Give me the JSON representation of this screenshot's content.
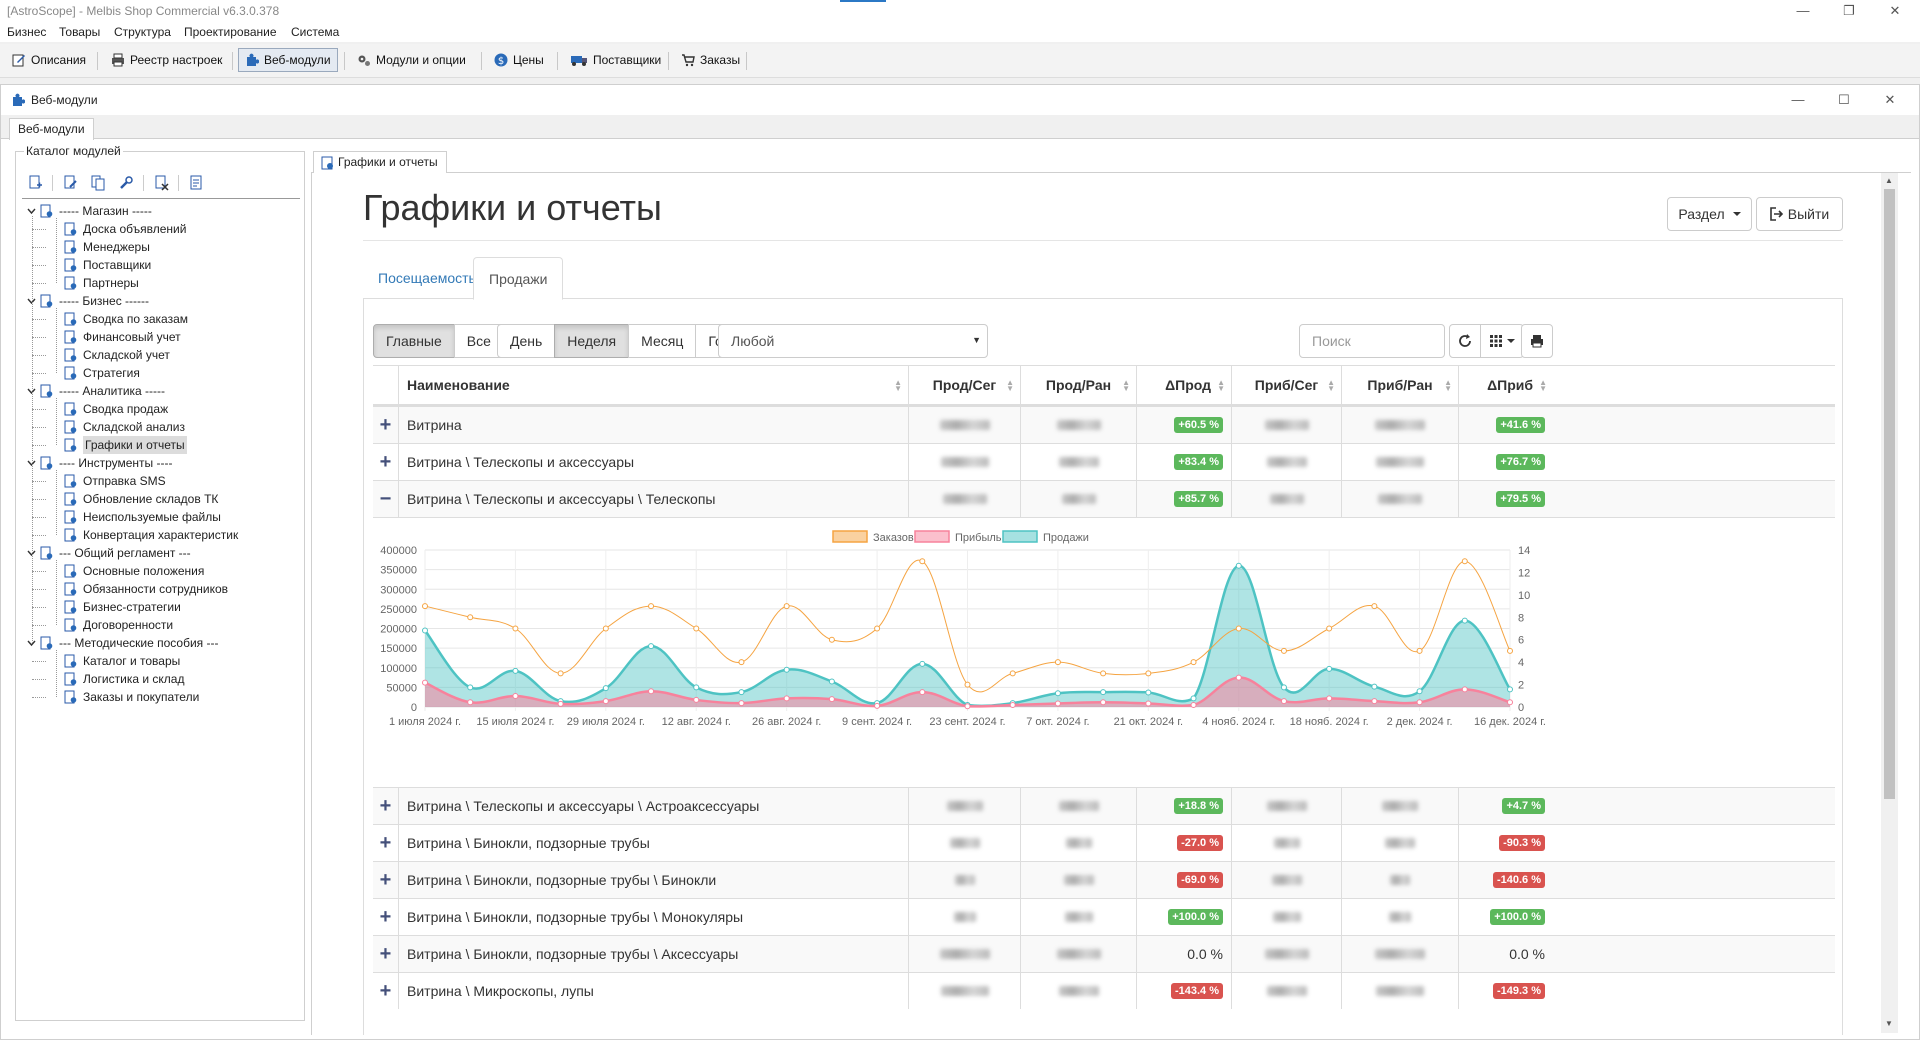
{
  "app": {
    "title": "[AstroScope] - Melbis Shop Commercial v6.3.0.378",
    "menu": [
      "Бизнес",
      "Товары",
      "Структура",
      "Проектирование",
      "Система"
    ],
    "toolbar": [
      {
        "label": "Описания",
        "icon": "pen-icon"
      },
      {
        "label": "Реестр настроек",
        "icon": "printer-icon"
      },
      {
        "label": "Веб-модули",
        "icon": "puzzle-icon"
      },
      {
        "label": "Модули и опции",
        "icon": "gears-icon"
      },
      {
        "label": "Цены",
        "icon": "dollar-icon"
      },
      {
        "label": "Поставщики",
        "icon": "truck-icon"
      },
      {
        "label": "Заказы",
        "icon": "cart-icon"
      }
    ]
  },
  "child": {
    "title": "Веб-модули",
    "tab": "Веб-модули"
  },
  "catalog": {
    "label": "Каталог модулей",
    "tree": [
      {
        "label": "----- Магазин -----",
        "level": 0
      },
      {
        "label": "Доска объявлений",
        "level": 1
      },
      {
        "label": "Менеджеры",
        "level": 1
      },
      {
        "label": "Поставщики",
        "level": 1
      },
      {
        "label": "Партнеры",
        "level": 1
      },
      {
        "label": "----- Бизнес ------",
        "level": 0
      },
      {
        "label": "Сводка по заказам",
        "level": 1
      },
      {
        "label": "Финансовый учет",
        "level": 1
      },
      {
        "label": "Складской учет",
        "level": 1
      },
      {
        "label": "Стратегия",
        "level": 1
      },
      {
        "label": "----- Аналитика -----",
        "level": 0
      },
      {
        "label": "Сводка продаж",
        "level": 1
      },
      {
        "label": "Складской анализ",
        "level": 1
      },
      {
        "label": "Графики и отчеты",
        "level": 1,
        "selected": true
      },
      {
        "label": "---- Инструменты ----",
        "level": 0
      },
      {
        "label": "Отправка SMS",
        "level": 1
      },
      {
        "label": "Обновление складов ТК",
        "level": 1
      },
      {
        "label": "Неиспользуемые файлы",
        "level": 1
      },
      {
        "label": "Конвертация характеристик",
        "level": 1
      },
      {
        "label": "--- Общий регламент ---",
        "level": 0
      },
      {
        "label": "Основные положения",
        "level": 1
      },
      {
        "label": "Обязанности сотрудников",
        "level": 1
      },
      {
        "label": "Бизнес-стратегии",
        "level": 1
      },
      {
        "label": "Договоренности",
        "level": 1
      },
      {
        "label": "--- Методические пособия ---",
        "level": 0
      },
      {
        "label": "Каталог и товары",
        "level": 1
      },
      {
        "label": "Логистика и склад",
        "level": 1
      },
      {
        "label": "Заказы и покупатели",
        "level": 1
      }
    ]
  },
  "right_tab": "Графики и отчеты",
  "page": {
    "title": "Графики и отчеты",
    "section_btn": "Раздел",
    "exit_btn": "Выйти",
    "tabs": [
      "Посещаемость",
      "Продажи"
    ],
    "active_tab": 1,
    "filter_main": [
      "Главные",
      "Все"
    ],
    "filter_period": [
      "День",
      "Неделя",
      "Месяц",
      "Год"
    ],
    "select_value": "Любой",
    "search_placeholder": "Поиск"
  },
  "grid": {
    "columns": [
      "Наименование",
      "Прод/Сег",
      "Прод/Ран",
      "ΔПрод",
      "Приб/Сег",
      "Приб/Ран",
      "ΔПриб"
    ],
    "rows_before": [
      {
        "name": "Витрина",
        "d_prod": "+60.5 %",
        "d_prod_sign": "pos",
        "d_prib": "+41.6 %",
        "d_prib_sign": "pos",
        "toggle": "+"
      },
      {
        "name": "Витрина \\ Телескопы и аксессуары",
        "d_prod": "+83.4 %",
        "d_prod_sign": "pos",
        "d_prib": "+76.7 %",
        "d_prib_sign": "pos",
        "toggle": "+"
      },
      {
        "name": "Витрина \\ Телескопы и аксессуары \\ Телескопы",
        "d_prod": "+85.7 %",
        "d_prod_sign": "pos",
        "d_prib": "+79.5 %",
        "d_prib_sign": "pos",
        "toggle": "−"
      }
    ],
    "rows_after": [
      {
        "name": "Витрина \\ Телескопы и аксессуары \\ Астроаксессуары",
        "d_prod": "+18.8 %",
        "d_prod_sign": "pos",
        "d_prib": "+4.7 %",
        "d_prib_sign": "pos",
        "toggle": "+"
      },
      {
        "name": "Витрина \\ Бинокли, подзорные трубы",
        "d_prod": "-27.0 %",
        "d_prod_sign": "neg",
        "d_prib": "-90.3 %",
        "d_prib_sign": "neg",
        "toggle": "+"
      },
      {
        "name": "Витрина \\ Бинокли, подзорные трубы \\ Бинокли",
        "d_prod": "-69.0 %",
        "d_prod_sign": "neg",
        "d_prib": "-140.6 %",
        "d_prib_sign": "neg",
        "toggle": "+"
      },
      {
        "name": "Витрина \\ Бинокли, подзорные трубы \\ Монокуляры",
        "d_prod": "+100.0 %",
        "d_prod_sign": "pos",
        "d_prib": "+100.0 %",
        "d_prib_sign": "pos",
        "toggle": "+"
      },
      {
        "name": "Витрина \\ Бинокли, подзорные трубы \\ Аксессуары",
        "d_prod": "0.0 %",
        "d_prod_sign": "none",
        "d_prib": "0.0 %",
        "d_prib_sign": "none",
        "toggle": "+"
      },
      {
        "name": "Витрина \\ Микроскопы, лупы",
        "d_prod": "-143.4 %",
        "d_prod_sign": "neg",
        "d_prib": "-149.3 %",
        "d_prib_sign": "neg",
        "toggle": "+"
      }
    ]
  },
  "chart_data": {
    "type": "line",
    "legend": [
      "Заказов",
      "Прибыль",
      "Продажи"
    ],
    "colors": {
      "orders": "#f5a442",
      "profit": "#f7829c",
      "sales": "#4ec3c3"
    },
    "x": [
      "1 июля 2024 г.",
      "8 июля 2024 г.",
      "15 июля 2024 г.",
      "22 июля 2024 г.",
      "29 июля 2024 г.",
      "5 авг. 2024 г.",
      "12 авг. 2024 г.",
      "19 авг. 2024 г.",
      "26 авг. 2024 г.",
      "2 сент. 2024 г.",
      "9 сент. 2024 г.",
      "16 сент. 2024 г.",
      "23 сент. 2024 г.",
      "30 сент. 2024 г.",
      "7 окт. 2024 г.",
      "14 окт. 2024 г.",
      "21 окт. 2024 г.",
      "28 окт. 2024 г.",
      "4 нояб. 2024 г.",
      "11 нояб. 2024 г.",
      "18 нояб. 2024 г.",
      "25 нояб. 2024 г.",
      "2 дек. 2024 г.",
      "9 дек. 2024 г.",
      "16 дек. 2024 г."
    ],
    "x_tick_labels": [
      "1 июля 2024 г.",
      "15 июля 2024 г.",
      "29 июля 2024 г.",
      "12 авг. 2024 г.",
      "26 авг. 2024 г.",
      "9 сент. 2024 г.",
      "23 сент. 2024 г.",
      "7 окт. 2024 г.",
      "21 окт. 2024 г.",
      "4 нояб. 2024 г.",
      "18 нояб. 2024 г.",
      "2 дек. 2024 г.",
      "16 дек. 2024 г."
    ],
    "series": [
      {
        "name": "Продажи",
        "axis": "left",
        "values": [
          195000,
          50000,
          92000,
          15000,
          48000,
          155000,
          50000,
          38000,
          95000,
          65000,
          10000,
          110000,
          5000,
          10000,
          35000,
          38000,
          37000,
          22000,
          360000,
          50000,
          97000,
          52000,
          40000,
          220000,
          45000
        ]
      },
      {
        "name": "Прибыль",
        "axis": "left",
        "values": [
          62000,
          12000,
          28000,
          8000,
          15000,
          40000,
          18000,
          10000,
          22000,
          20000,
          3000,
          38000,
          2000,
          5000,
          9000,
          12000,
          9000,
          5000,
          75000,
          15000,
          22000,
          15000,
          12000,
          45000,
          12000
        ]
      },
      {
        "name": "Заказов",
        "axis": "right",
        "values": [
          9,
          8,
          7,
          3,
          7,
          9,
          7,
          4,
          9,
          6,
          7,
          13,
          2,
          3,
          4,
          3,
          3,
          4,
          7,
          5,
          7,
          9,
          5,
          13,
          5
        ]
      }
    ],
    "ylim": [
      0,
      400000
    ],
    "y_ticks": [
      0,
      50000,
      100000,
      150000,
      200000,
      250000,
      300000,
      350000,
      400000
    ],
    "y2lim": [
      0,
      14
    ],
    "y2_ticks": [
      0,
      2,
      4,
      6,
      8,
      10,
      12,
      14
    ],
    "grid": true,
    "legend_position": "top"
  }
}
